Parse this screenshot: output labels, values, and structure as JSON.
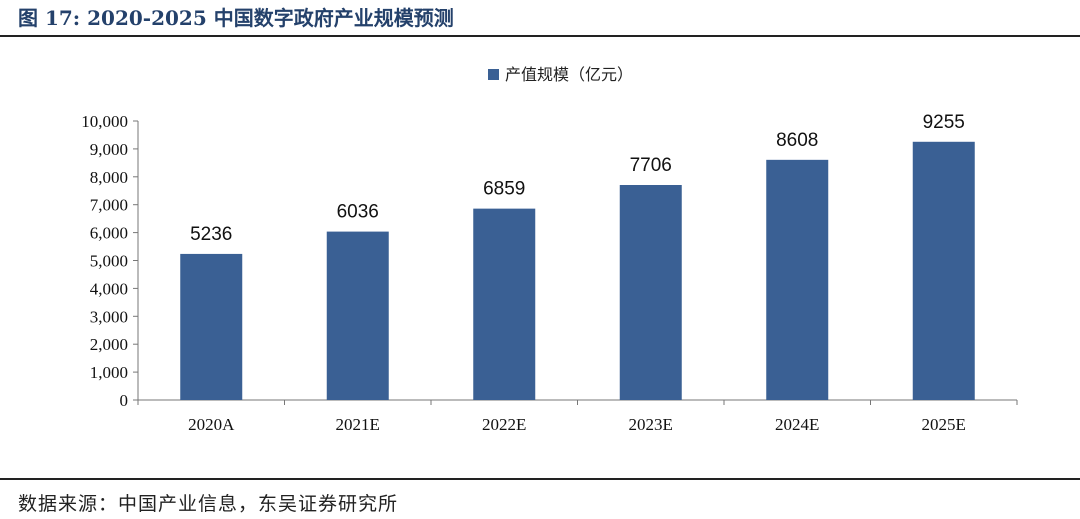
{
  "header": {
    "title": "图 17:  2020-2025 中国数字政府产业规模预测"
  },
  "footer": {
    "source": "数据来源：中国产业信息，东吴证券研究所"
  },
  "colors": {
    "bar": "#3a6094",
    "title": "#24416b"
  },
  "chart_data": {
    "type": "bar",
    "categories": [
      "2020A",
      "2021E",
      "2022E",
      "2023E",
      "2024E",
      "2025E"
    ],
    "series": [
      {
        "name": "产值规模（亿元）",
        "values": [
          5236,
          6036,
          6859,
          7706,
          8608,
          9255
        ]
      }
    ],
    "y_ticks": [
      "0",
      "1,000",
      "2,000",
      "3,000",
      "4,000",
      "5,000",
      "6,000",
      "7,000",
      "8,000",
      "9,000",
      "10,000"
    ],
    "ylim": [
      0,
      10000
    ],
    "title": "",
    "xlabel": "",
    "ylabel": "",
    "legend_position": "top-center",
    "grid": false,
    "data_labels": true
  }
}
